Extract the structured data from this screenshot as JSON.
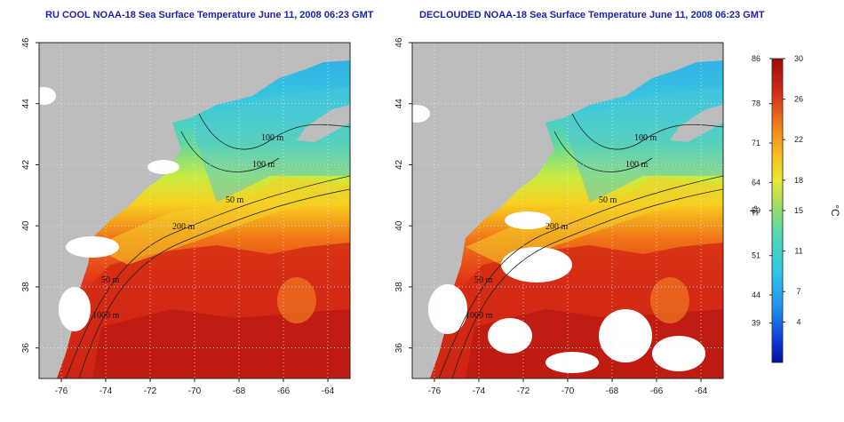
{
  "panels": [
    {
      "title": "RU COOL NOAA-18 Sea Surface Temperature June 11, 2008 06:23 GMT",
      "mode": "cool"
    },
    {
      "title": "DECLOUDED NOAA-18 Sea Surface Temperature June 11, 2008 06:23 GMT",
      "mode": "declouded"
    }
  ],
  "axes": {
    "lon_ticks": [
      "-76",
      "-74",
      "-72",
      "-70",
      "-68",
      "-66",
      "-64"
    ],
    "lat_ticks": [
      "36",
      "38",
      "40",
      "42",
      "44",
      "46"
    ],
    "lon_range": [
      -77,
      -63
    ],
    "lat_range": [
      35,
      46
    ]
  },
  "contour_labels": [
    "100 m",
    "100 m",
    "50 m",
    "200 m",
    "50 m",
    "1000 m"
  ],
  "colorbar": {
    "fahrenheit_ticks": [
      "86",
      "78",
      "71",
      "64",
      "59",
      "51",
      "44",
      "39"
    ],
    "celsius_ticks": [
      "30",
      "26",
      "22",
      "18",
      "15",
      "11",
      "7",
      "4"
    ],
    "fahrenheit_unit": "°F",
    "celsius_unit": "°C",
    "range_c": [
      0,
      30
    ]
  },
  "colors": {
    "land": "#bdbdbd",
    "cloud": "#ffffff",
    "title": "#1a24a8"
  }
}
